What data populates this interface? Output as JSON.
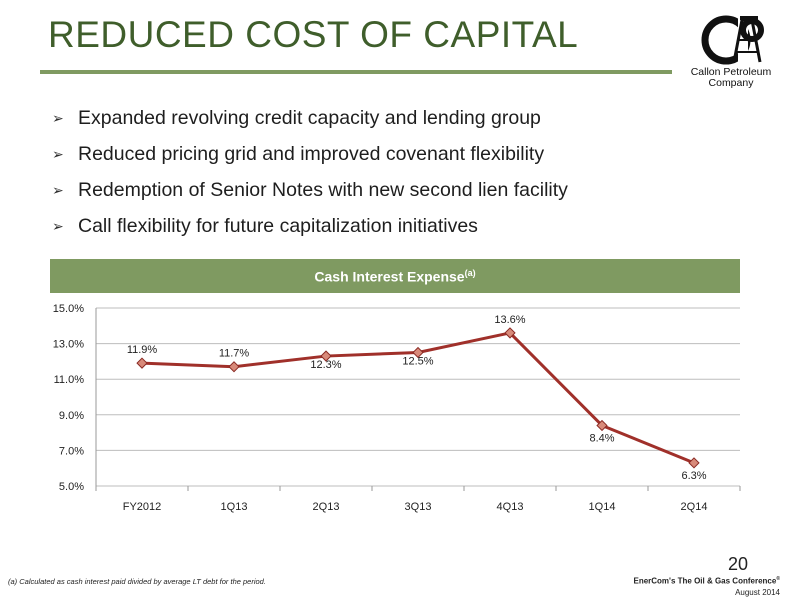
{
  "slide": {
    "title": "REDUCED COST OF CAPITAL",
    "page_number": "20",
    "footnote": "(a) Calculated as cash interest paid divided by average LT debt for the period.",
    "conference": "EnerCom's The Oil & Gas Conference",
    "conference_mark": "®",
    "date": "August 2014",
    "accent_color": "#7f9a61",
    "title_color": "#3f5e2b"
  },
  "logo": {
    "line1": "Callon Petroleum",
    "line2": "Company",
    "icon": "derrick-cp-logo"
  },
  "bullets": [
    "Expanded revolving credit capacity and lending group",
    "Reduced pricing grid and improved covenant flexibility",
    "Redemption of Senior Notes with new second lien facility",
    "Call flexibility for future capitalization initiatives"
  ],
  "chart_header": {
    "title": "Cash Interest Expense",
    "superscript": "(a)"
  },
  "chart_data": {
    "type": "line",
    "title": "Cash Interest Expense(a)",
    "categories": [
      "FY2012",
      "1Q13",
      "2Q13",
      "3Q13",
      "4Q13",
      "1Q14",
      "2Q14"
    ],
    "series": [
      {
        "values": [
          11.9,
          11.7,
          12.3,
          12.5,
          13.6,
          8.4,
          6.3
        ],
        "color": "#a0302a"
      }
    ],
    "data_labels": [
      "11.9%",
      "11.7%",
      "12.3%",
      "12.5%",
      "13.6%",
      "8.4%",
      "6.3%"
    ],
    "y_ticks": [
      "5.0%",
      "7.0%",
      "9.0%",
      "11.0%",
      "13.0%",
      "15.0%"
    ],
    "ylim": [
      5,
      15
    ],
    "grid": true,
    "legend": "none"
  }
}
